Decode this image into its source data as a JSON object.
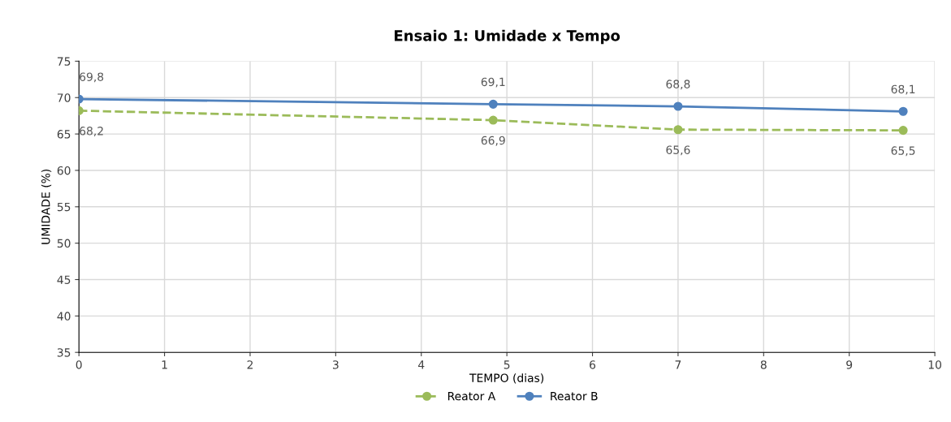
{
  "chart_data": {
    "type": "line",
    "title": "Ensaio 1: Umidade x Tempo",
    "xlabel": "TEMPO (dias)",
    "ylabel": "UMIDADE (%)",
    "series": [
      {
        "name": "Reator A",
        "color": "#9bbb59",
        "x": [
          0,
          4.84,
          7,
          9.63
        ],
        "values": [
          68.2,
          66.9,
          65.6,
          65.5
        ],
        "value_labels": [
          "68,2",
          "66,9",
          "65,6",
          "65,5"
        ],
        "line_style": "dashed"
      },
      {
        "name": "Reator B",
        "color": "#4f81bd",
        "x": [
          0,
          4.84,
          7,
          9.63
        ],
        "values": [
          69.8,
          69.1,
          68.8,
          68.1
        ],
        "value_labels": [
          "69,8",
          "69,1",
          "68,8",
          "68,1"
        ],
        "line_style": "solid"
      }
    ],
    "xlim": [
      0,
      10
    ],
    "xticks": [
      0,
      1,
      2,
      3,
      4,
      5,
      6,
      7,
      8,
      9,
      10
    ],
    "ylim": [
      35,
      75
    ],
    "yticks": [
      35,
      40,
      45,
      50,
      55,
      60,
      65,
      70,
      75
    ],
    "grid": true,
    "legend": "bottom",
    "marker": "circle"
  }
}
